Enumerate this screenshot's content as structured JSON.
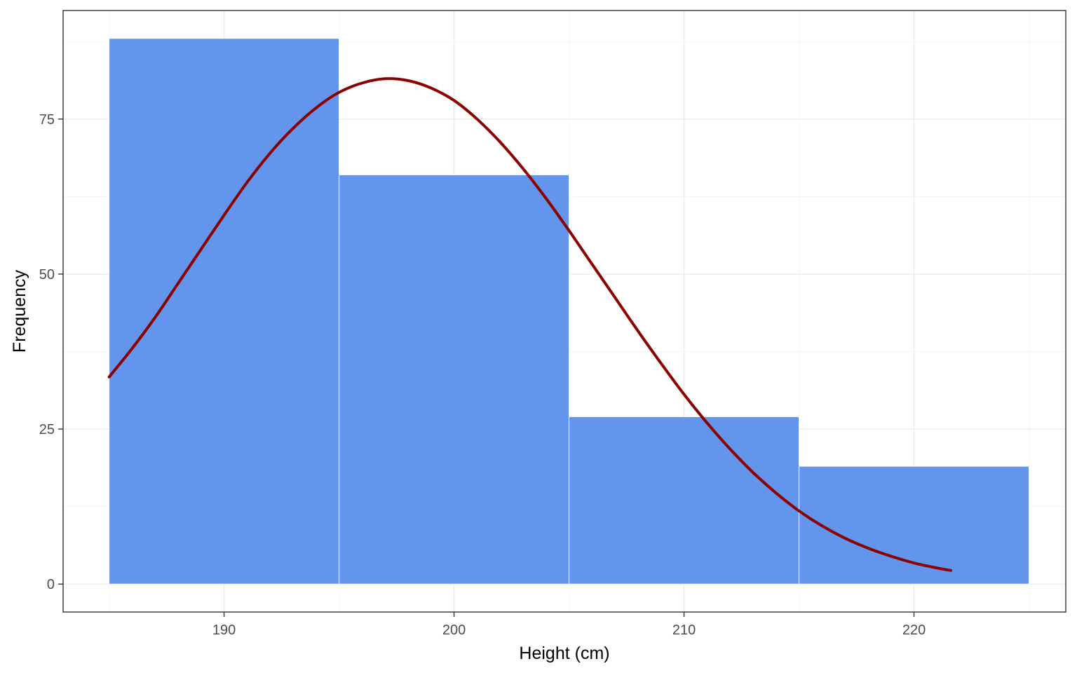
{
  "chart_data": {
    "type": "bar",
    "subtype": "histogram-with-density-curve",
    "xlabel": "Height (cm)",
    "ylabel": "Frequency",
    "xlim": [
      183.0,
      226.6
    ],
    "ylim": [
      -4.5,
      92.5
    ],
    "x_ticks": [
      190,
      200,
      210,
      220
    ],
    "x_tick_labels": [
      "190",
      "200",
      "210",
      "220"
    ],
    "y_ticks": [
      0,
      25,
      50,
      75
    ],
    "y_tick_labels": [
      "0",
      "25",
      "50",
      "75"
    ],
    "x_minor_ticks": [
      185,
      195,
      205,
      215,
      225
    ],
    "y_minor_ticks": [
      12.5,
      37.5,
      62.5,
      87.5
    ],
    "grid": true,
    "bins": [
      {
        "x_start": 185,
        "x_end": 195,
        "value": 88
      },
      {
        "x_start": 195,
        "x_end": 205,
        "value": 66
      },
      {
        "x_start": 205,
        "x_end": 215,
        "value": 27
      },
      {
        "x_start": 215,
        "x_end": 225,
        "value": 19
      }
    ],
    "curve": {
      "x": [
        185,
        186,
        187,
        188,
        189,
        190,
        191,
        192,
        193,
        194,
        195,
        196,
        197,
        198,
        199,
        200,
        201,
        202,
        203,
        204,
        205,
        206,
        207,
        208,
        209,
        210,
        211,
        212,
        213,
        214,
        215,
        216,
        217,
        218,
        219,
        220,
        221,
        221.6
      ],
      "y": [
        33.4,
        38.0,
        43.0,
        48.5,
        54.0,
        59.5,
        64.8,
        69.5,
        73.5,
        76.8,
        79.3,
        80.8,
        81.5,
        81.2,
        80.0,
        78.0,
        75.0,
        71.3,
        67.0,
        62.2,
        57.0,
        51.6,
        46.2,
        40.8,
        35.6,
        30.6,
        26.0,
        21.8,
        18.0,
        14.7,
        11.8,
        9.4,
        7.4,
        5.8,
        4.5,
        3.4,
        2.6,
        2.2
      ]
    },
    "colors": {
      "bar_fill": "#6495ED",
      "bar_outline": "#ffffff",
      "curve": "#8B0000",
      "grid": "#ebebeb",
      "panel_border": "#333333"
    }
  }
}
